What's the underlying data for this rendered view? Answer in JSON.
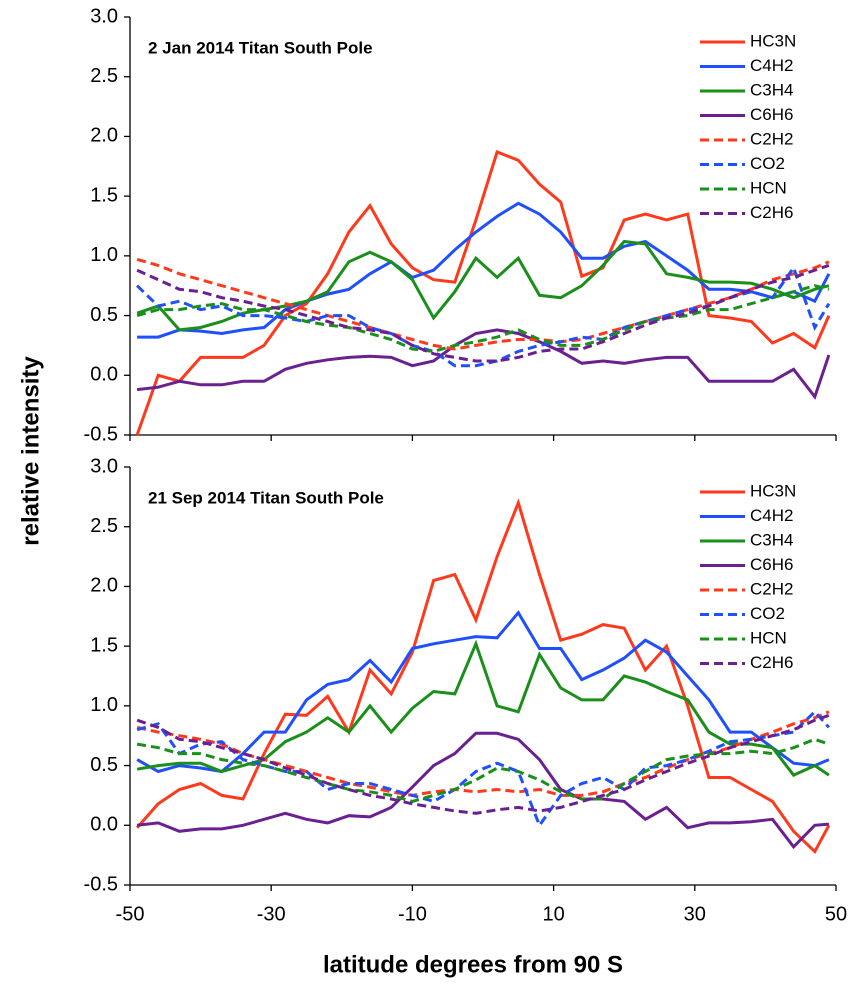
{
  "chart_data": [
    {
      "type": "line",
      "title": "2 Jan 2014 Titan South Pole",
      "ylabel": "relative intensity",
      "x": [
        -49,
        -46,
        -43,
        -40,
        -37,
        -34,
        -31,
        -28,
        -25,
        -22,
        -19,
        -16,
        -13,
        -10,
        -7,
        -4,
        -1,
        2,
        5,
        8,
        11,
        14,
        17,
        20,
        23,
        26,
        29,
        32,
        35,
        38,
        41,
        44,
        47,
        49
      ],
      "xlim": [
        -50,
        50
      ],
      "xticks": [
        -50,
        -30,
        -10,
        10,
        30,
        50
      ],
      "ylim": [
        -0.5,
        3
      ],
      "yticks": [
        {
          "value": -0.5,
          "label": "-0.5"
        },
        {
          "value": 0,
          "label": "0.0"
        },
        {
          "value": 0.5,
          "label": "0.5"
        },
        {
          "value": 1,
          "label": "1.0"
        },
        {
          "value": 1.5,
          "label": "1.5"
        },
        {
          "value": 2,
          "label": "2.0"
        },
        {
          "value": 2.5,
          "label": "2.5"
        },
        {
          "value": 3,
          "label": "3.0"
        }
      ],
      "legend": "upper right",
      "series": [
        {
          "name": "HC3N",
          "color": "#ff3a1c",
          "dashed": false,
          "values": [
            -0.5,
            0.0,
            -0.05,
            0.15,
            0.15,
            0.15,
            0.25,
            0.5,
            0.6,
            0.85,
            1.2,
            1.42,
            1.1,
            0.9,
            0.8,
            0.78,
            1.3,
            1.87,
            1.8,
            1.6,
            1.45,
            0.83,
            0.9,
            1.3,
            1.35,
            1.3,
            1.35,
            0.5,
            0.48,
            0.45,
            0.27,
            0.35,
            0.23,
            0.5
          ]
        },
        {
          "name": "C4H2",
          "color": "#1f4fff",
          "dashed": false,
          "values": [
            0.32,
            0.32,
            0.38,
            0.37,
            0.35,
            0.38,
            0.4,
            0.55,
            0.62,
            0.68,
            0.72,
            0.85,
            0.95,
            0.82,
            0.88,
            1.05,
            1.2,
            1.33,
            1.44,
            1.35,
            1.2,
            0.98,
            0.98,
            1.08,
            1.12,
            1.0,
            0.88,
            0.72,
            0.72,
            0.7,
            0.65,
            0.7,
            0.62,
            0.85
          ]
        },
        {
          "name": "C3H4",
          "color": "#1a8f1a",
          "dashed": false,
          "values": [
            0.52,
            0.58,
            0.38,
            0.4,
            0.45,
            0.52,
            0.55,
            0.58,
            0.62,
            0.7,
            0.95,
            1.03,
            0.95,
            0.8,
            0.48,
            0.7,
            0.98,
            0.82,
            0.98,
            0.67,
            0.65,
            0.75,
            0.92,
            1.12,
            1.1,
            0.85,
            0.82,
            0.78,
            0.78,
            0.77,
            0.72,
            0.65,
            0.72,
            0.75
          ]
        },
        {
          "name": "C6H6",
          "color": "#6b2090",
          "dashed": false,
          "values": [
            -0.12,
            -0.1,
            -0.05,
            -0.08,
            -0.08,
            -0.05,
            -0.05,
            0.05,
            0.1,
            0.13,
            0.15,
            0.16,
            0.15,
            0.08,
            0.12,
            0.25,
            0.35,
            0.38,
            0.35,
            0.28,
            0.2,
            0.1,
            0.12,
            0.1,
            0.13,
            0.15,
            0.15,
            -0.05,
            -0.05,
            -0.05,
            -0.05,
            0.05,
            -0.18,
            0.17
          ]
        },
        {
          "name": "C2H2",
          "color": "#ff3a1c",
          "dashed": true,
          "values": [
            0.97,
            0.92,
            0.85,
            0.8,
            0.75,
            0.7,
            0.65,
            0.6,
            0.55,
            0.5,
            0.45,
            0.4,
            0.35,
            0.3,
            0.25,
            0.22,
            0.25,
            0.28,
            0.3,
            0.3,
            0.28,
            0.3,
            0.35,
            0.4,
            0.45,
            0.5,
            0.55,
            0.6,
            0.65,
            0.72,
            0.8,
            0.85,
            0.9,
            0.95
          ]
        },
        {
          "name": "CO2",
          "color": "#1f4fff",
          "dashed": true,
          "values": [
            0.75,
            0.58,
            0.62,
            0.55,
            0.58,
            0.5,
            0.5,
            0.48,
            0.45,
            0.5,
            0.5,
            0.4,
            0.35,
            0.25,
            0.2,
            0.08,
            0.08,
            0.12,
            0.2,
            0.25,
            0.28,
            0.32,
            0.3,
            0.4,
            0.45,
            0.5,
            0.55,
            0.58,
            0.65,
            0.7,
            0.65,
            0.9,
            0.4,
            0.6
          ]
        },
        {
          "name": "HCN",
          "color": "#1a8f1a",
          "dashed": true,
          "values": [
            0.5,
            0.55,
            0.55,
            0.58,
            0.6,
            0.55,
            0.55,
            0.5,
            0.45,
            0.42,
            0.4,
            0.35,
            0.3,
            0.22,
            0.2,
            0.25,
            0.28,
            0.32,
            0.38,
            0.3,
            0.25,
            0.25,
            0.3,
            0.38,
            0.45,
            0.48,
            0.5,
            0.55,
            0.55,
            0.6,
            0.65,
            0.7,
            0.75,
            0.72
          ]
        },
        {
          "name": "C2H6",
          "color": "#6b2090",
          "dashed": true,
          "values": [
            0.88,
            0.8,
            0.72,
            0.7,
            0.65,
            0.62,
            0.58,
            0.55,
            0.5,
            0.45,
            0.4,
            0.38,
            0.35,
            0.25,
            0.18,
            0.15,
            0.12,
            0.12,
            0.15,
            0.2,
            0.22,
            0.22,
            0.28,
            0.35,
            0.42,
            0.48,
            0.52,
            0.58,
            0.65,
            0.72,
            0.78,
            0.82,
            0.88,
            0.92
          ]
        }
      ]
    },
    {
      "type": "line",
      "title": "21 Sep 2014 Titan South Pole",
      "xlabel": "latitude degrees from 90 S",
      "x": [
        -49,
        -46,
        -43,
        -40,
        -37,
        -34,
        -31,
        -28,
        -25,
        -22,
        -19,
        -16,
        -13,
        -10,
        -7,
        -4,
        -1,
        2,
        5,
        8,
        11,
        14,
        17,
        20,
        23,
        26,
        29,
        32,
        35,
        38,
        41,
        44,
        47,
        49
      ],
      "xlim": [
        -50,
        50
      ],
      "xticks": [
        -50,
        -30,
        -10,
        10,
        30,
        50
      ],
      "ylim": [
        -0.5,
        3
      ],
      "yticks": [
        {
          "value": -0.5,
          "label": "-0.5"
        },
        {
          "value": 0,
          "label": "0.0"
        },
        {
          "value": 0.5,
          "label": "0.5"
        },
        {
          "value": 1,
          "label": "1.0"
        },
        {
          "value": 1.5,
          "label": "1.5"
        },
        {
          "value": 2,
          "label": "2.0"
        },
        {
          "value": 2.5,
          "label": "2.5"
        },
        {
          "value": 3,
          "label": "3.0"
        }
      ],
      "legend": "upper right",
      "series": [
        {
          "name": "HC3N",
          "color": "#ff3a1c",
          "dashed": false,
          "values": [
            -0.02,
            0.18,
            0.3,
            0.35,
            0.25,
            0.22,
            0.6,
            0.93,
            0.92,
            1.08,
            0.78,
            1.3,
            1.1,
            1.45,
            2.05,
            2.1,
            1.72,
            2.25,
            2.7,
            2.1,
            1.55,
            1.6,
            1.68,
            1.65,
            1.3,
            1.5,
            1.0,
            0.4,
            0.4,
            0.3,
            0.2,
            -0.05,
            -0.22,
            0.0
          ]
        },
        {
          "name": "C4H2",
          "color": "#1f4fff",
          "dashed": false,
          "values": [
            0.55,
            0.45,
            0.5,
            0.48,
            0.45,
            0.6,
            0.78,
            0.78,
            1.05,
            1.18,
            1.22,
            1.38,
            1.2,
            1.48,
            1.52,
            1.55,
            1.58,
            1.57,
            1.78,
            1.48,
            1.48,
            1.22,
            1.3,
            1.4,
            1.55,
            1.45,
            1.25,
            1.05,
            0.78,
            0.78,
            0.65,
            0.52,
            0.5,
            0.55
          ]
        },
        {
          "name": "C3H4",
          "color": "#1a8f1a",
          "dashed": false,
          "values": [
            0.47,
            0.5,
            0.52,
            0.52,
            0.45,
            0.5,
            0.55,
            0.7,
            0.78,
            0.9,
            0.78,
            1.0,
            0.78,
            0.98,
            1.12,
            1.1,
            1.52,
            1.0,
            0.95,
            1.43,
            1.15,
            1.05,
            1.05,
            1.25,
            1.2,
            1.12,
            1.05,
            0.78,
            0.68,
            0.68,
            0.65,
            0.42,
            0.5,
            0.42
          ]
        },
        {
          "name": "C6H6",
          "color": "#6b2090",
          "dashed": false,
          "values": [
            0.0,
            0.02,
            -0.05,
            -0.03,
            -0.03,
            0.0,
            0.05,
            0.1,
            0.05,
            0.02,
            0.08,
            0.07,
            0.15,
            0.32,
            0.5,
            0.6,
            0.77,
            0.77,
            0.72,
            0.55,
            0.3,
            0.22,
            0.22,
            0.2,
            0.05,
            0.15,
            -0.02,
            0.02,
            0.02,
            0.03,
            0.05,
            -0.18,
            0.0,
            0.01
          ]
        },
        {
          "name": "C2H2",
          "color": "#ff3a1c",
          "dashed": true,
          "values": [
            0.82,
            0.78,
            0.75,
            0.72,
            0.68,
            0.6,
            0.55,
            0.5,
            0.45,
            0.4,
            0.35,
            0.32,
            0.28,
            0.25,
            0.28,
            0.3,
            0.28,
            0.3,
            0.28,
            0.3,
            0.25,
            0.25,
            0.28,
            0.35,
            0.4,
            0.48,
            0.55,
            0.6,
            0.65,
            0.72,
            0.78,
            0.85,
            0.9,
            0.95
          ]
        },
        {
          "name": "CO2",
          "color": "#1f4fff",
          "dashed": true,
          "values": [
            0.8,
            0.85,
            0.6,
            0.68,
            0.7,
            0.55,
            0.5,
            0.45,
            0.45,
            0.3,
            0.35,
            0.35,
            0.3,
            0.25,
            0.2,
            0.3,
            0.45,
            0.52,
            0.45,
            0.0,
            0.25,
            0.35,
            0.4,
            0.3,
            0.48,
            0.5,
            0.55,
            0.62,
            0.7,
            0.72,
            0.75,
            0.78,
            0.95,
            0.82
          ]
        },
        {
          "name": "HCN",
          "color": "#1a8f1a",
          "dashed": true,
          "values": [
            0.68,
            0.65,
            0.6,
            0.6,
            0.55,
            0.52,
            0.5,
            0.45,
            0.4,
            0.35,
            0.3,
            0.28,
            0.25,
            0.2,
            0.25,
            0.3,
            0.38,
            0.48,
            0.45,
            0.38,
            0.28,
            0.22,
            0.22,
            0.35,
            0.45,
            0.55,
            0.58,
            0.6,
            0.6,
            0.62,
            0.6,
            0.65,
            0.72,
            0.68
          ]
        },
        {
          "name": "C2H6",
          "color": "#6b2090",
          "dashed": true,
          "values": [
            0.88,
            0.82,
            0.72,
            0.7,
            0.65,
            0.6,
            0.55,
            0.48,
            0.42,
            0.35,
            0.3,
            0.25,
            0.22,
            0.18,
            0.15,
            0.12,
            0.1,
            0.13,
            0.15,
            0.12,
            0.15,
            0.2,
            0.25,
            0.3,
            0.38,
            0.45,
            0.52,
            0.58,
            0.65,
            0.7,
            0.75,
            0.8,
            0.88,
            0.92
          ]
        }
      ]
    }
  ]
}
